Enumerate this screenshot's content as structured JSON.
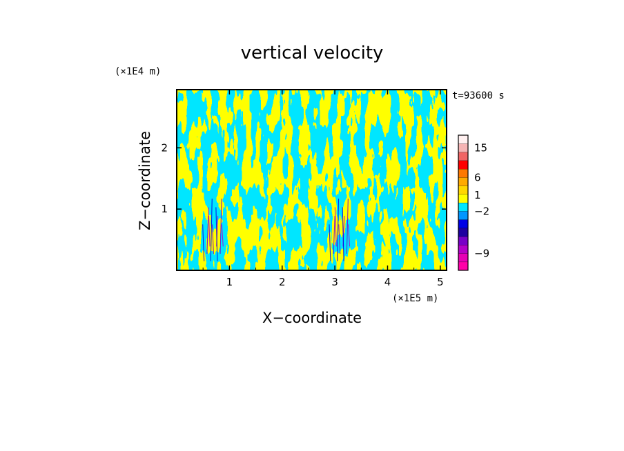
{
  "chart_data": {
    "type": "heatmap",
    "title": "vertical velocity",
    "xlabel": "X−coordinate",
    "ylabel": "Z−coordinate",
    "x_unit": "(×1E5 m)",
    "y_unit": "(×1E4 m)",
    "time_label": "t=93600 s",
    "xlim": [
      0,
      5.12
    ],
    "ylim": [
      0,
      2.95
    ],
    "x_ticks": [
      {
        "value": 1,
        "label": "1"
      },
      {
        "value": 2,
        "label": "2"
      },
      {
        "value": 3,
        "label": "3"
      },
      {
        "value": 4,
        "label": "4"
      },
      {
        "value": 5,
        "label": "5"
      }
    ],
    "y_ticks": [
      {
        "value": 1,
        "label": "1"
      },
      {
        "value": 2,
        "label": "2"
      }
    ],
    "colorbar": {
      "levels": [
        {
          "color": "#ff00a8"
        },
        {
          "color": "#e600b4"
        },
        {
          "color": "#b400c8"
        },
        {
          "color": "#7800c8"
        },
        {
          "color": "#1e00a0"
        },
        {
          "color": "#0000e6"
        },
        {
          "color": "#0096ff"
        },
        {
          "color": "#00e6ff"
        },
        {
          "color": "#ffff00"
        },
        {
          "color": "#ffd700"
        },
        {
          "color": "#ffaa00"
        },
        {
          "color": "#ff7800"
        },
        {
          "color": "#ff0000"
        },
        {
          "color": "#f06464"
        },
        {
          "color": "#f5b4b4"
        },
        {
          "color": "#fff0f0"
        }
      ],
      "tick_labels": [
        {
          "label": "15",
          "level": 14.5
        },
        {
          "label": "6",
          "level": 11
        },
        {
          "label": "1",
          "level": 8.9
        },
        {
          "label": "−2",
          "level": 7
        },
        {
          "label": "−9",
          "level": 2
        }
      ]
    },
    "field": {
      "dominant_colors": [
        "#00e6ff",
        "#ffff00"
      ],
      "accent_colors": [
        "#0000e6",
        "#7800c8",
        "#b400c8"
      ],
      "plume_centers_x": [
        0.7,
        3.1
      ]
    }
  }
}
